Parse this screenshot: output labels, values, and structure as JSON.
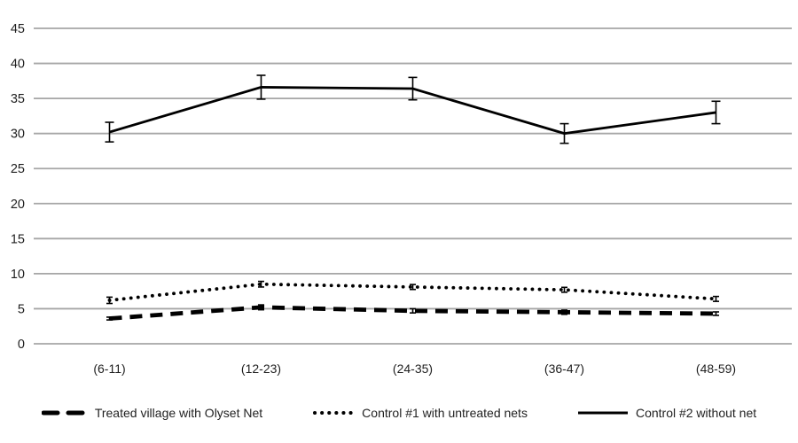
{
  "chart_data": {
    "type": "line",
    "title": "",
    "xlabel": "",
    "ylabel": "",
    "categories": [
      "(6-11)",
      "(12-23)",
      "(24-35)",
      "(36-47)",
      "(48-59)"
    ],
    "series": [
      {
        "name": "Treated village with Olyset Net",
        "style": "dashed",
        "values": [
          3.6,
          5.2,
          4.7,
          4.5,
          4.3
        ],
        "errors": [
          0.2,
          0.35,
          0.3,
          0.3,
          0.25
        ]
      },
      {
        "name": "Control #1 with untreated nets",
        "style": "dotted",
        "values": [
          6.2,
          8.5,
          8.1,
          7.7,
          6.4
        ],
        "errors": [
          0.45,
          0.4,
          0.35,
          0.35,
          0.35
        ]
      },
      {
        "name": "Control #2 without net",
        "style": "solid",
        "values": [
          30.2,
          36.6,
          36.4,
          30.0,
          33.0
        ],
        "errors": [
          1.4,
          1.7,
          1.6,
          1.4,
          1.6
        ]
      }
    ],
    "ylim": [
      0,
      45
    ],
    "ytick_step": 5,
    "ytick_labels": [
      "45",
      "40",
      "35",
      "30",
      "25",
      "20",
      "15",
      "10",
      "5",
      "0"
    ],
    "grid": true,
    "error_bars": true,
    "legend_position": "bottom",
    "colors": {
      "line": "#000000",
      "gridline": "#a6a6a6",
      "text": "#1f1f1f",
      "background": "#ffffff"
    }
  }
}
